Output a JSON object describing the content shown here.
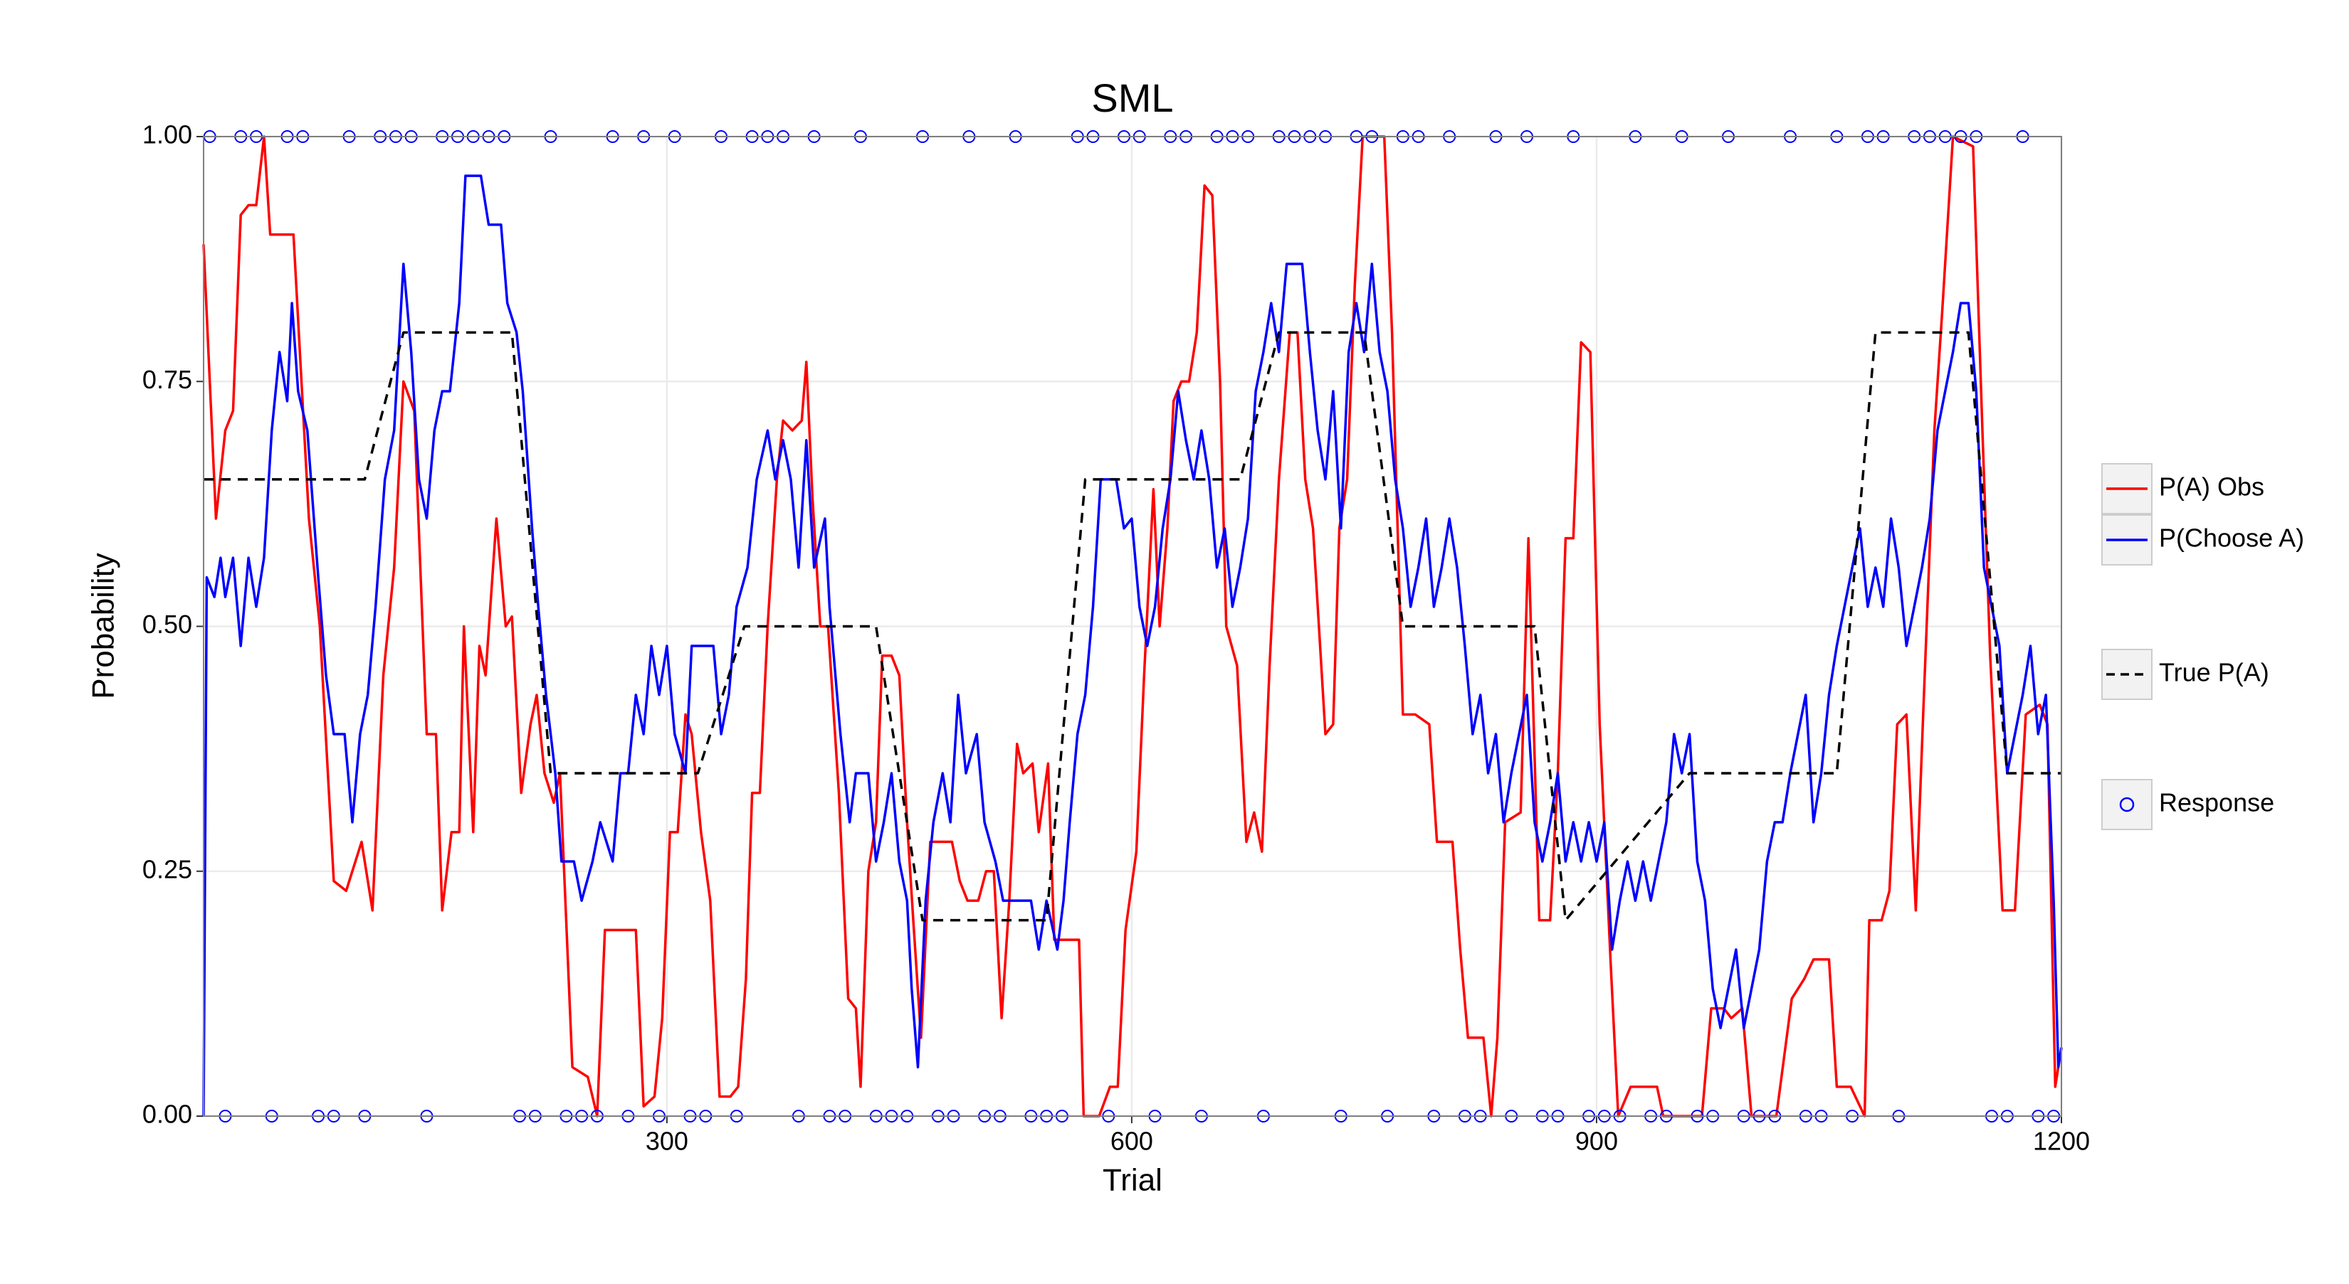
{
  "chart_data": {
    "type": "line",
    "title": "SML",
    "x_label": "Trial",
    "y_label": "Probability",
    "xlim": [
      1,
      1200
    ],
    "ylim": [
      0,
      1
    ],
    "xticks": [
      300,
      600,
      900,
      1200
    ],
    "yticks": [
      {
        "value": 0,
        "label": "0.00"
      },
      {
        "value": 0.25,
        "label": "0.25"
      },
      {
        "value": 0.5,
        "label": "0.50"
      },
      {
        "value": 0.75,
        "label": "0.75"
      },
      {
        "value": 1,
        "label": "1.00"
      }
    ],
    "grid": true,
    "legend": "right",
    "series": [
      {
        "name": "P(A) Obs",
        "color": "#ff0000",
        "x": [
          1,
          9,
          15,
          20,
          25,
          30,
          35,
          40,
          44,
          54,
          59,
          69,
          76,
          85,
          93,
          103,
          110,
          117,
          124,
          130,
          137,
          145,
          151,
          155,
          161,
          166,
          169,
          175,
          179,
          183,
          190,
          196,
          200,
          206,
          212,
          216,
          221,
          227,
          231,
          239,
          249,
          255,
          260,
          273,
          280,
          285,
          292,
          297,
          302,
          307,
          312,
          316,
          322,
          328,
          334,
          341,
          346,
          351,
          355,
          360,
          365,
          371,
          375,
          381,
          387,
          390,
          394,
          399,
          404,
          411,
          417,
          422,
          425,
          430,
          435,
          439,
          445,
          450,
          455,
          459,
          464,
          470,
          477,
          484,
          489,
          494,
          501,
          506,
          511,
          516,
          521,
          526,
          530,
          536,
          540,
          546,
          550,
          559,
          566,
          569,
          579,
          586,
          591,
          596,
          603,
          608,
          614,
          618,
          623,
          627,
          632,
          637,
          642,
          647,
          652,
          657,
          661,
          668,
          674,
          679,
          684,
          689,
          695,
          702,
          707,
          712,
          717,
          725,
          730,
          734,
          739,
          744,
          749,
          763,
          768,
          775,
          783,
          792,
          797,
          807,
          812,
          817,
          827,
          832,
          836,
          841,
          851,
          856,
          863,
          870,
          875,
          880,
          885,
          890,
          896,
          902,
          909,
          914,
          922,
          939,
          943,
          968,
          974,
          982,
          987,
          994,
          1000,
          1016,
          1026,
          1034,
          1040,
          1050,
          1055,
          1064,
          1073,
          1076,
          1084,
          1089,
          1094,
          1100,
          1106,
          1111,
          1118,
          1123,
          1130,
          1143,
          1149,
          1154,
          1162,
          1170,
          1177,
          1186,
          1191,
          1196,
          1200
        ],
        "values": [
          0.89,
          0.61,
          0.7,
          0.72,
          0.92,
          0.93,
          0.93,
          1.0,
          0.9,
          0.9,
          0.9,
          0.61,
          0.5,
          0.24,
          0.23,
          0.28,
          0.21,
          0.45,
          0.56,
          0.75,
          0.72,
          0.39,
          0.39,
          0.21,
          0.29,
          0.29,
          0.5,
          0.29,
          0.48,
          0.45,
          0.61,
          0.5,
          0.51,
          0.33,
          0.4,
          0.43,
          0.35,
          0.32,
          0.35,
          0.05,
          0.04,
          0.0,
          0.19,
          0.19,
          0.19,
          0.01,
          0.02,
          0.1,
          0.29,
          0.29,
          0.41,
          0.39,
          0.29,
          0.22,
          0.02,
          0.02,
          0.03,
          0.14,
          0.33,
          0.33,
          0.5,
          0.65,
          0.71,
          0.7,
          0.71,
          0.77,
          0.63,
          0.5,
          0.5,
          0.33,
          0.12,
          0.11,
          0.03,
          0.25,
          0.3,
          0.47,
          0.47,
          0.45,
          0.3,
          0.2,
          0.08,
          0.28,
          0.28,
          0.28,
          0.24,
          0.22,
          0.22,
          0.25,
          0.25,
          0.1,
          0.22,
          0.38,
          0.35,
          0.36,
          0.29,
          0.36,
          0.18,
          0.18,
          0.18,
          0.0,
          0.0,
          0.03,
          0.03,
          0.19,
          0.27,
          0.45,
          0.64,
          0.5,
          0.6,
          0.73,
          0.75,
          0.75,
          0.8,
          0.95,
          0.94,
          0.75,
          0.5,
          0.46,
          0.28,
          0.31,
          0.27,
          0.46,
          0.65,
          0.8,
          0.8,
          0.65,
          0.6,
          0.39,
          0.4,
          0.6,
          0.65,
          0.85,
          1.0,
          1.0,
          0.8,
          0.41,
          0.41,
          0.4,
          0.28,
          0.28,
          0.17,
          0.08,
          0.08,
          0.0,
          0.08,
          0.3,
          0.31,
          0.59,
          0.2,
          0.2,
          0.35,
          0.59,
          0.59,
          0.79,
          0.78,
          0.4,
          0.16,
          0.0,
          0.03,
          0.03,
          0.0,
          0.0,
          0.11,
          0.11,
          0.1,
          0.11,
          0.0,
          0.0,
          0.12,
          0.14,
          0.16,
          0.16,
          0.03,
          0.03,
          0.0,
          0.2,
          0.2,
          0.23,
          0.4,
          0.41,
          0.21,
          0.42,
          0.7,
          0.82,
          1.0,
          0.99,
          0.7,
          0.47,
          0.21,
          0.21,
          0.41,
          0.42,
          0.4,
          0.03,
          0.07
        ]
      },
      {
        "name": "P(Choose A)",
        "color": "#0000ff",
        "x": [
          1,
          3,
          8,
          12,
          15,
          20,
          25,
          30,
          35,
          40,
          45,
          50,
          55,
          58,
          62,
          68,
          75,
          80,
          85,
          92,
          97,
          102,
          107,
          112,
          118,
          124,
          130,
          135,
          140,
          145,
          150,
          155,
          160,
          166,
          170,
          180,
          185,
          193,
          197,
          203,
          207,
          213,
          217,
          222,
          228,
          232,
          240,
          245,
          252,
          257,
          265,
          270,
          275,
          280,
          285,
          290,
          295,
          300,
          305,
          312,
          316,
          330,
          335,
          340,
          345,
          352,
          358,
          365,
          370,
          375,
          380,
          385,
          390,
          395,
          402,
          405,
          412,
          418,
          422,
          430,
          435,
          440,
          445,
          450,
          455,
          458,
          462,
          467,
          472,
          478,
          483,
          488,
          493,
          500,
          505,
          512,
          517,
          525,
          535,
          540,
          545,
          552,
          556,
          560,
          565,
          570,
          575,
          580,
          590,
          595,
          600,
          605,
          610,
          615,
          620,
          625,
          630,
          635,
          640,
          645,
          650,
          655,
          660,
          665,
          670,
          675,
          680,
          685,
          690,
          695,
          700,
          710,
          715,
          720,
          725,
          730,
          735,
          740,
          745,
          750,
          755,
          760,
          765,
          770,
          775,
          780,
          785,
          790,
          795,
          800,
          805,
          810,
          815,
          820,
          825,
          830,
          835,
          840,
          845,
          850,
          855,
          860,
          865,
          870,
          875,
          880,
          885,
          890,
          895,
          900,
          905,
          910,
          915,
          920,
          925,
          930,
          935,
          940,
          945,
          950,
          955,
          960,
          965,
          970,
          975,
          980,
          985,
          990,
          995,
          1000,
          1005,
          1010,
          1015,
          1020,
          1025,
          1030,
          1035,
          1040,
          1045,
          1050,
          1055,
          1060,
          1065,
          1070,
          1075,
          1080,
          1085,
          1090,
          1095,
          1100,
          1105,
          1110,
          1115,
          1120,
          1125,
          1130,
          1135,
          1140,
          1145,
          1150,
          1155,
          1160,
          1165,
          1170,
          1175,
          1180,
          1185,
          1190,
          1195,
          1198,
          1200
        ],
        "values": [
          0.0,
          0.55,
          0.53,
          0.57,
          0.53,
          0.57,
          0.48,
          0.57,
          0.52,
          0.57,
          0.7,
          0.78,
          0.73,
          0.83,
          0.74,
          0.7,
          0.55,
          0.45,
          0.39,
          0.39,
          0.3,
          0.39,
          0.43,
          0.52,
          0.65,
          0.7,
          0.87,
          0.78,
          0.65,
          0.61,
          0.7,
          0.74,
          0.74,
          0.83,
          0.96,
          0.96,
          0.91,
          0.91,
          0.83,
          0.8,
          0.74,
          0.6,
          0.52,
          0.43,
          0.35,
          0.26,
          0.26,
          0.22,
          0.26,
          0.3,
          0.26,
          0.35,
          0.35,
          0.43,
          0.39,
          0.48,
          0.43,
          0.48,
          0.39,
          0.35,
          0.48,
          0.48,
          0.39,
          0.43,
          0.52,
          0.56,
          0.65,
          0.7,
          0.65,
          0.69,
          0.65,
          0.56,
          0.69,
          0.56,
          0.61,
          0.52,
          0.39,
          0.3,
          0.35,
          0.35,
          0.26,
          0.3,
          0.35,
          0.26,
          0.22,
          0.13,
          0.05,
          0.22,
          0.3,
          0.35,
          0.3,
          0.43,
          0.35,
          0.39,
          0.3,
          0.26,
          0.22,
          0.22,
          0.22,
          0.17,
          0.22,
          0.17,
          0.22,
          0.3,
          0.39,
          0.43,
          0.52,
          0.65,
          0.65,
          0.6,
          0.61,
          0.52,
          0.48,
          0.52,
          0.6,
          0.65,
          0.74,
          0.69,
          0.65,
          0.7,
          0.65,
          0.56,
          0.6,
          0.52,
          0.56,
          0.61,
          0.74,
          0.78,
          0.83,
          0.78,
          0.87,
          0.87,
          0.78,
          0.7,
          0.65,
          0.74,
          0.6,
          0.78,
          0.83,
          0.78,
          0.87,
          0.78,
          0.74,
          0.65,
          0.6,
          0.52,
          0.56,
          0.61,
          0.52,
          0.56,
          0.61,
          0.56,
          0.48,
          0.39,
          0.43,
          0.35,
          0.39,
          0.3,
          0.35,
          0.39,
          0.43,
          0.3,
          0.26,
          0.3,
          0.35,
          0.26,
          0.3,
          0.26,
          0.3,
          0.26,
          0.3,
          0.17,
          0.22,
          0.26,
          0.22,
          0.26,
          0.22,
          0.26,
          0.3,
          0.39,
          0.35,
          0.39,
          0.26,
          0.22,
          0.13,
          0.09,
          0.13,
          0.17,
          0.09,
          0.13,
          0.17,
          0.26,
          0.3,
          0.3,
          0.35,
          0.39,
          0.43,
          0.3,
          0.35,
          0.43,
          0.48,
          0.52,
          0.56,
          0.6,
          0.52,
          0.56,
          0.52,
          0.61,
          0.56,
          0.48,
          0.52,
          0.56,
          0.61,
          0.7,
          0.74,
          0.78,
          0.83,
          0.83,
          0.74,
          0.56,
          0.52,
          0.48,
          0.35,
          0.39,
          0.43,
          0.48,
          0.39,
          0.43,
          0.22,
          0.05,
          0.07
        ]
      },
      {
        "name": "True P(A)",
        "color": "#000000",
        "line_style": "dashed",
        "x": [
          1,
          105,
          130,
          200,
          225,
          320,
          350,
          435,
          465,
          545,
          570,
          670,
          695,
          750,
          775,
          860,
          880,
          960,
          1055,
          1080,
          1140,
          1165,
          1200
        ],
        "values": [
          0.65,
          0.65,
          0.8,
          0.8,
          0.35,
          0.35,
          0.5,
          0.5,
          0.2,
          0.2,
          0.65,
          0.65,
          0.8,
          0.8,
          0.5,
          0.5,
          0.2,
          0.35,
          0.35,
          0.8,
          0.8,
          0.35,
          0.35
        ]
      },
      {
        "name": "Response",
        "color": "#0000ff",
        "marker": "circle",
        "x": [
          5,
          15,
          25,
          35,
          45,
          55,
          65,
          75,
          85,
          95,
          105,
          115,
          125,
          135,
          145,
          155,
          165,
          175,
          185,
          195,
          205,
          215,
          225,
          235,
          245,
          255,
          265,
          275,
          285,
          295,
          305,
          315,
          325,
          335,
          345,
          355,
          365,
          375,
          385,
          395,
          405,
          415,
          425,
          435,
          445,
          455,
          465,
          475,
          485,
          495,
          505,
          515,
          525,
          535,
          545,
          555,
          565,
          575,
          585,
          595,
          605,
          615,
          625,
          635,
          645,
          655,
          665,
          675,
          685,
          695,
          705,
          715,
          725,
          735,
          745,
          755,
          765,
          775,
          785,
          795,
          805,
          815,
          825,
          835,
          845,
          855,
          865,
          875,
          885,
          895,
          905,
          915,
          925,
          935,
          945,
          955,
          965,
          975,
          985,
          995,
          1005,
          1015,
          1025,
          1035,
          1045,
          1055,
          1065,
          1075,
          1085,
          1095,
          1105,
          1115,
          1125,
          1135,
          1145,
          1155,
          1165,
          1175,
          1185,
          1195
        ],
        "values": [
          1,
          0,
          1,
          1,
          0,
          1,
          1,
          0,
          0,
          1,
          0,
          1,
          1,
          1,
          0,
          1,
          1,
          1,
          1,
          1,
          0,
          0,
          1,
          0,
          0,
          0,
          1,
          0,
          1,
          0,
          1,
          0,
          0,
          1,
          0,
          1,
          1,
          1,
          0,
          1,
          0,
          0,
          1,
          0,
          0,
          0,
          1,
          0,
          0,
          1,
          0,
          0,
          1,
          0,
          0,
          0,
          1,
          1,
          0,
          1,
          1,
          0,
          1,
          1,
          0,
          1,
          1,
          1,
          0,
          1,
          1,
          1,
          1,
          0,
          1,
          1,
          0,
          1,
          1,
          0,
          1,
          0,
          0,
          1,
          0,
          1,
          0,
          0,
          1,
          0,
          0,
          0,
          1,
          0,
          0,
          1,
          0,
          0,
          1,
          0,
          0,
          0,
          1,
          0,
          0,
          1,
          0,
          1,
          1,
          0,
          1,
          1,
          1,
          1,
          1,
          0,
          0,
          1,
          0,
          0
        ]
      }
    ]
  }
}
